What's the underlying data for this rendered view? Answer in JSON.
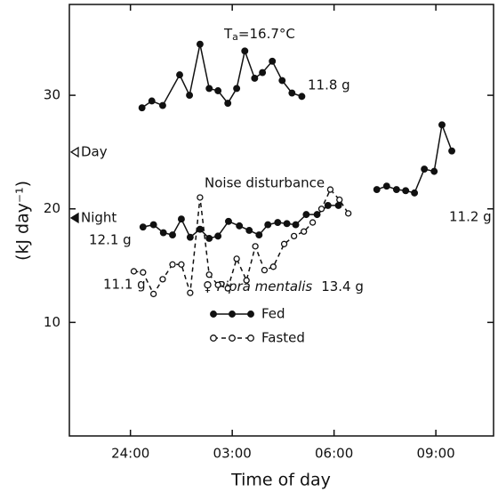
{
  "chart_data": {
    "type": "line",
    "x_label": "Time of day",
    "y_label": "(kJ day⁻¹)",
    "xlim": [
      22.2,
      34.7
    ],
    "ylim": [
      0,
      38
    ],
    "xticks": [
      {
        "value": 24,
        "label": "24:00"
      },
      {
        "value": 27,
        "label": "03:00"
      },
      {
        "value": 30,
        "label": "06:00"
      },
      {
        "value": 33,
        "label": "09:00"
      }
    ],
    "yticks": [
      10,
      20,
      30
    ],
    "ta_symbol": "T",
    "ta_subscript": "a",
    "ta_value": "=16.7°C",
    "annotations": [
      "11.8 g",
      "12.1 g",
      "11.2 g",
      "11.1 g",
      "Noise disturbance"
    ],
    "species_label": "♀ Pipra mentalis",
    "mass_label": "13.4 g",
    "markers": [
      {
        "label": "Day",
        "value": 25,
        "filled": false
      },
      {
        "label": "Night",
        "value": 19.2,
        "filled": true
      }
    ],
    "series": [
      {
        "name": "Fed",
        "color": "#111111",
        "dashed": false,
        "filled": true,
        "x": [
          24.34,
          24.63,
          24.95,
          25.45,
          25.74,
          26.05,
          26.32,
          26.58,
          26.87,
          27.13,
          27.37,
          27.66,
          27.89,
          28.18,
          28.47,
          28.76,
          29.05,
          null,
          24.37,
          24.68,
          24.97,
          25.24,
          25.5,
          25.76,
          26.05,
          26.32,
          26.58,
          26.89,
          27.21,
          27.5,
          27.79,
          28.05,
          28.34,
          28.61,
          28.87,
          29.18,
          29.5,
          29.82,
          30.13,
          null,
          31.26,
          31.55,
          31.84,
          32.11,
          32.37,
          32.66,
          32.95,
          33.18,
          33.47
        ],
        "values": [
          28.9,
          29.5,
          29.1,
          31.8,
          30.0,
          34.5,
          30.6,
          30.4,
          29.3,
          30.6,
          33.9,
          31.5,
          32.0,
          33.0,
          31.3,
          30.2,
          29.9,
          null,
          18.4,
          18.6,
          17.9,
          17.7,
          19.1,
          17.5,
          18.2,
          17.4,
          17.6,
          18.9,
          18.5,
          18.1,
          17.7,
          18.6,
          18.8,
          18.7,
          18.6,
          19.5,
          19.5,
          20.3,
          20.3,
          null,
          21.7,
          22.0,
          21.7,
          21.6,
          21.4,
          23.5,
          23.3,
          27.4,
          25.1
        ]
      },
      {
        "name": "Fasted",
        "color": "#111111",
        "dashed": true,
        "filled": false,
        "x": [
          24.1,
          24.37,
          24.68,
          24.95,
          25.24,
          25.5,
          25.76,
          26.05,
          26.32,
          26.58,
          26.87,
          27.13,
          27.42,
          27.68,
          27.95,
          28.21,
          28.53,
          28.82,
          29.11,
          29.37,
          29.63,
          29.89,
          30.16,
          30.42
        ],
        "values": [
          14.5,
          14.4,
          12.5,
          13.8,
          15.1,
          15.1,
          12.6,
          21.0,
          14.2,
          13.3,
          13.0,
          15.6,
          13.7,
          16.7,
          14.6,
          14.9,
          16.9,
          17.6,
          18.0,
          18.8,
          20.0,
          21.7,
          20.8,
          19.6
        ]
      }
    ]
  }
}
